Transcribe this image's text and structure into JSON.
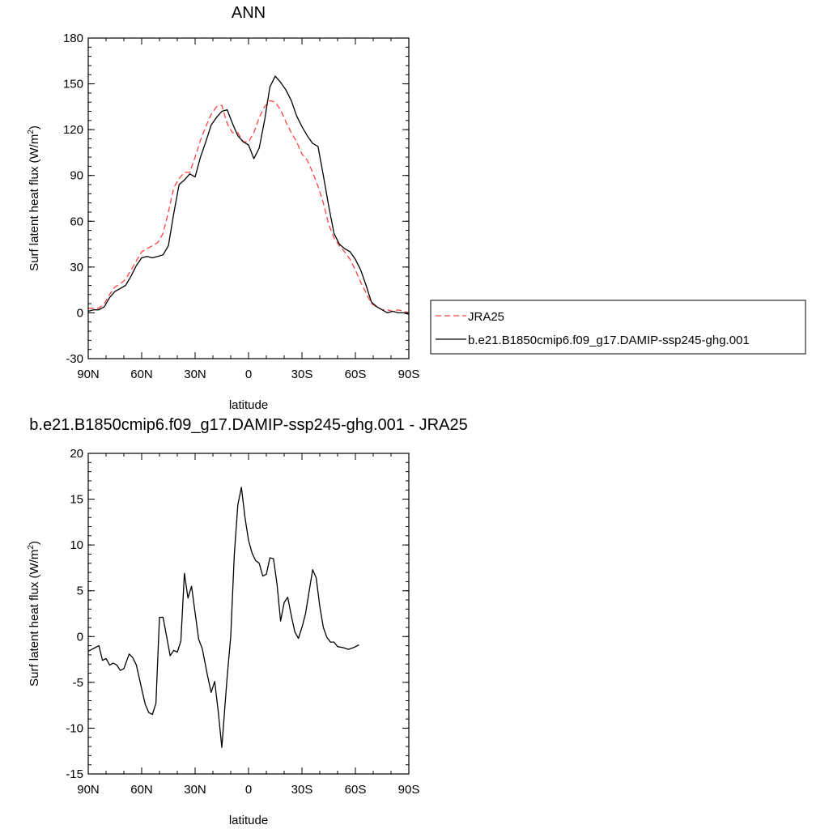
{
  "chart_data": [
    {
      "type": "line",
      "title": "ANN",
      "xlabel": "latitude",
      "ylabel_main": "Surf latent heat flux (W/m",
      "ylabel_sup": "2",
      "ylabel_close": ")",
      "xlim": [
        90,
        -90
      ],
      "ylim": [
        -30,
        180
      ],
      "x_tick_values": [
        90,
        60,
        30,
        0,
        -30,
        -60,
        -90
      ],
      "x_tick_labels": [
        "90N",
        "60N",
        "30N",
        "0",
        "30S",
        "60S",
        "90S"
      ],
      "y_ticks": [
        -30,
        0,
        30,
        60,
        90,
        120,
        150,
        180
      ],
      "legend_position": "right",
      "series": [
        {
          "name": "JRA25",
          "color": "#ff4040",
          "dash": "dashed",
          "points": [
            [
              90,
              3
            ],
            [
              87,
              3
            ],
            [
              84,
              3
            ],
            [
              81,
              6
            ],
            [
              78,
              12
            ],
            [
              75,
              17
            ],
            [
              72,
              19
            ],
            [
              69,
              22
            ],
            [
              66,
              28
            ],
            [
              63,
              34
            ],
            [
              60,
              40
            ],
            [
              57,
              42
            ],
            [
              54,
              44
            ],
            [
              51,
              46
            ],
            [
              48,
              52
            ],
            [
              45,
              66
            ],
            [
              42,
              82
            ],
            [
              39,
              88
            ],
            [
              36,
              92
            ],
            [
              33,
              92
            ],
            [
              30,
              102
            ],
            [
              27,
              113
            ],
            [
              24,
              122
            ],
            [
              21,
              130
            ],
            [
              18,
              135
            ],
            [
              15,
              136
            ],
            [
              12,
              124
            ],
            [
              9,
              118
            ],
            [
              6,
              118
            ],
            [
              3,
              112
            ],
            [
              0,
              112
            ],
            [
              -3,
              118
            ],
            [
              -6,
              128
            ],
            [
              -9,
              135
            ],
            [
              -12,
              139
            ],
            [
              -15,
              138
            ],
            [
              -18,
              133
            ],
            [
              -21,
              125
            ],
            [
              -24,
              118
            ],
            [
              -27,
              112
            ],
            [
              -30,
              104
            ],
            [
              -33,
              100
            ],
            [
              -36,
              92
            ],
            [
              -39,
              83
            ],
            [
              -42,
              72
            ],
            [
              -45,
              58
            ],
            [
              -48,
              49
            ],
            [
              -51,
              44
            ],
            [
              -54,
              40
            ],
            [
              -57,
              35
            ],
            [
              -60,
              28
            ],
            [
              -63,
              20
            ],
            [
              -66,
              13
            ],
            [
              -69,
              6
            ],
            [
              -72,
              4
            ],
            [
              -75,
              2
            ],
            [
              -78,
              2
            ],
            [
              -81,
              1
            ],
            [
              -84,
              2
            ],
            [
              -87,
              1
            ],
            [
              -90,
              0
            ]
          ]
        },
        {
          "name": "b.e21.B1850cmip6.f09_g17.DAMIP-ssp245-ghg.001",
          "color": "#000000",
          "dash": "solid",
          "points": [
            [
              90,
              1
            ],
            [
              87,
              2
            ],
            [
              84,
              2
            ],
            [
              81,
              4
            ],
            [
              78,
              10
            ],
            [
              75,
              14
            ],
            [
              72,
              16
            ],
            [
              69,
              18
            ],
            [
              66,
              24
            ],
            [
              63,
              31
            ],
            [
              60,
              36
            ],
            [
              57,
              37
            ],
            [
              54,
              36
            ],
            [
              51,
              37
            ],
            [
              48,
              38
            ],
            [
              45,
              44
            ],
            [
              42,
              65
            ],
            [
              39,
              84
            ],
            [
              36,
              87
            ],
            [
              33,
              91
            ],
            [
              30,
              89
            ],
            [
              27,
              102
            ],
            [
              24,
              112
            ],
            [
              21,
              123
            ],
            [
              18,
              128
            ],
            [
              15,
              132
            ],
            [
              12,
              133
            ],
            [
              9,
              124
            ],
            [
              6,
              116
            ],
            [
              3,
              112
            ],
            [
              0,
              110
            ],
            [
              -3,
              101
            ],
            [
              -6,
              108
            ],
            [
              -9,
              126
            ],
            [
              -12,
              148
            ],
            [
              -15,
              155
            ],
            [
              -18,
              151
            ],
            [
              -21,
              146
            ],
            [
              -24,
              139
            ],
            [
              -27,
              129
            ],
            [
              -30,
              122
            ],
            [
              -33,
              116
            ],
            [
              -36,
              111
            ],
            [
              -39,
              109
            ],
            [
              -42,
              90
            ],
            [
              -45,
              70
            ],
            [
              -48,
              52
            ],
            [
              -51,
              45
            ],
            [
              -54,
              42
            ],
            [
              -57,
              40
            ],
            [
              -60,
              35
            ],
            [
              -63,
              28
            ],
            [
              -66,
              18
            ],
            [
              -69,
              7
            ],
            [
              -72,
              4
            ],
            [
              -75,
              2
            ],
            [
              -78,
              0
            ],
            [
              -81,
              1
            ],
            [
              -84,
              0
            ],
            [
              -87,
              0
            ],
            [
              -90,
              -1
            ]
          ]
        }
      ]
    },
    {
      "type": "line",
      "title": "b.e21.B1850cmip6.f09_g17.DAMIP-ssp245-ghg.001 - JRA25",
      "xlabel": "latitude",
      "ylabel_main": "Surf latent heat flux (W/m",
      "ylabel_sup": "2",
      "ylabel_close": ")",
      "xlim": [
        90,
        -90
      ],
      "ylim": [
        -15,
        20
      ],
      "x_tick_values": [
        90,
        60,
        30,
        0,
        -30,
        -60,
        -90
      ],
      "x_tick_labels": [
        "90N",
        "60N",
        "30N",
        "0",
        "30S",
        "60S",
        "90S"
      ],
      "y_ticks": [
        -15,
        -10,
        -5,
        0,
        5,
        10,
        15,
        20
      ],
      "series": [
        {
          "color": "#000000",
          "dash": "solid",
          "points": [
            [
              90,
              -1.6
            ],
            [
              87,
              -1.3
            ],
            [
              84,
              -1.0
            ],
            [
              82,
              -2.6
            ],
            [
              80,
              -2.4
            ],
            [
              78,
              -3.1
            ],
            [
              76,
              -2.9
            ],
            [
              74,
              -3.1
            ],
            [
              72,
              -3.7
            ],
            [
              70,
              -3.5
            ],
            [
              67,
              -1.9
            ],
            [
              65,
              -2.3
            ],
            [
              63,
              -3.1
            ],
            [
              60,
              -5.7
            ],
            [
              58,
              -7.4
            ],
            [
              56,
              -8.3
            ],
            [
              54,
              -8.5
            ],
            [
              52,
              -7.3
            ],
            [
              50,
              2.1
            ],
            [
              48,
              2.1
            ],
            [
              46,
              0.0
            ],
            [
              44,
              -2.1
            ],
            [
              42,
              -1.5
            ],
            [
              40,
              -1.7
            ],
            [
              38,
              -0.5
            ],
            [
              36,
              6.9
            ],
            [
              34,
              4.2
            ],
            [
              32,
              5.5
            ],
            [
              28,
              -0.3
            ],
            [
              26,
              -1.3
            ],
            [
              23,
              -4.3
            ],
            [
              21,
              -6.1
            ],
            [
              19,
              -4.9
            ],
            [
              17,
              -8.2
            ],
            [
              15,
              -12.1
            ],
            [
              12,
              -4.4
            ],
            [
              10,
              0.0
            ],
            [
              8,
              8.9
            ],
            [
              6,
              14.4
            ],
            [
              4,
              16.3
            ],
            [
              2,
              13.0
            ],
            [
              0,
              10.5
            ],
            [
              -2,
              9.1
            ],
            [
              -4,
              8.3
            ],
            [
              -6,
              8.0
            ],
            [
              -8,
              6.6
            ],
            [
              -10,
              6.8
            ],
            [
              -12,
              8.6
            ],
            [
              -14,
              8.5
            ],
            [
              -16,
              5.7
            ],
            [
              -18,
              1.7
            ],
            [
              -20,
              3.7
            ],
            [
              -22,
              4.3
            ],
            [
              -24,
              2.3
            ],
            [
              -26,
              0.5
            ],
            [
              -28,
              -0.2
            ],
            [
              -30,
              1.0
            ],
            [
              -32,
              2.5
            ],
            [
              -36,
              7.3
            ],
            [
              -38,
              6.4
            ],
            [
              -40,
              3.3
            ],
            [
              -42,
              1.0
            ],
            [
              -44,
              -0.1
            ],
            [
              -46,
              -0.6
            ],
            [
              -48,
              -0.6
            ],
            [
              -50,
              -1.1
            ],
            [
              -53,
              -1.2
            ],
            [
              -56,
              -1.4
            ],
            [
              -59,
              -1.2
            ],
            [
              -62,
              -0.9
            ]
          ]
        }
      ]
    }
  ]
}
